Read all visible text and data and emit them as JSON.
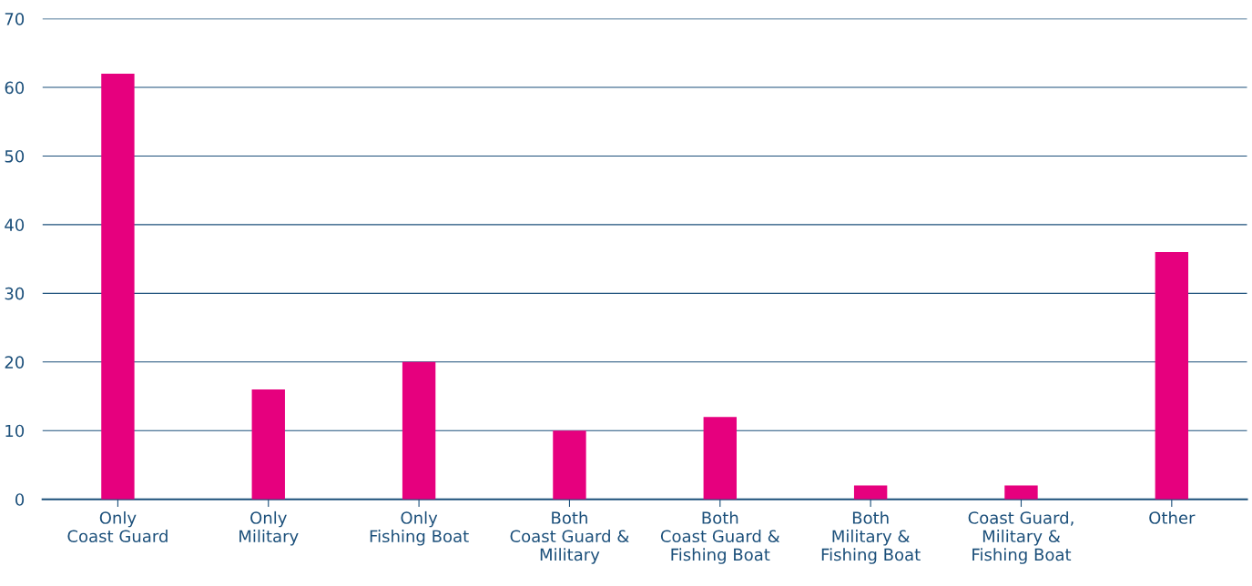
{
  "chart_data": {
    "type": "bar",
    "categories": [
      "Only\nCoast Guard",
      "Only\nMilitary",
      "Only\nFishing Boat",
      "Both\nCoast Guard &\nMilitary",
      "Both\nCoast Guard &\nFishing Boat",
      "Both\nMilitary &\nFishing Boat",
      "Coast Guard,\nMilitary &\nFishing Boat",
      "Other"
    ],
    "values": [
      62,
      16,
      20,
      10,
      12,
      2,
      2,
      36
    ],
    "color": "#e6007e",
    "ylim": [
      0,
      70
    ],
    "yticks": [
      0,
      10,
      20,
      30,
      40,
      50,
      60,
      70
    ],
    "grid": "y"
  }
}
